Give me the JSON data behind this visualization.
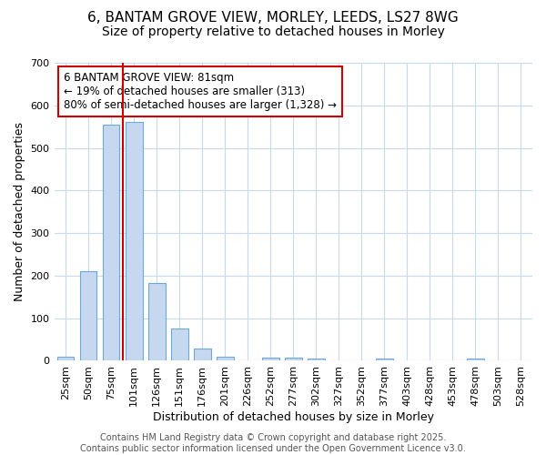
{
  "title_line1": "6, BANTAM GROVE VIEW, MORLEY, LEEDS, LS27 8WG",
  "title_line2": "Size of property relative to detached houses in Morley",
  "xlabel": "Distribution of detached houses by size in Morley",
  "ylabel": "Number of detached properties",
  "annotation_line1": "6 BANTAM GROVE VIEW: 81sqm",
  "annotation_line2": "← 19% of detached houses are smaller (313)",
  "annotation_line3": "80% of semi-detached houses are larger (1,328) →",
  "footer_line1": "Contains HM Land Registry data © Crown copyright and database right 2025.",
  "footer_line2": "Contains public sector information licensed under the Open Government Licence v3.0.",
  "categories": [
    "25sqm",
    "50sqm",
    "75sqm",
    "101sqm",
    "126sqm",
    "151sqm",
    "176sqm",
    "201sqm",
    "226sqm",
    "252sqm",
    "277sqm",
    "302sqm",
    "327sqm",
    "352sqm",
    "377sqm",
    "403sqm",
    "428sqm",
    "453sqm",
    "478sqm",
    "503sqm",
    "528sqm"
  ],
  "values": [
    10,
    210,
    555,
    560,
    183,
    75,
    28,
    10,
    0,
    8,
    8,
    5,
    0,
    0,
    5,
    0,
    0,
    0,
    5,
    0,
    0
  ],
  "bar_color": "#c5d8f0",
  "bar_edge_color": "#6fa8d8",
  "red_line_x": 2.5,
  "ylim": [
    0,
    700
  ],
  "yticks": [
    0,
    100,
    200,
    300,
    400,
    500,
    600,
    700
  ],
  "background_color": "#ffffff",
  "grid_color": "#c8d8ee",
  "annotation_box_color": "#ffffff",
  "annotation_box_edge": "#cc0000",
  "red_line_color": "#cc0000",
  "title_fontsize": 11,
  "subtitle_fontsize": 10,
  "axis_label_fontsize": 9,
  "tick_fontsize": 8,
  "annotation_fontsize": 8.5,
  "footer_fontsize": 7
}
